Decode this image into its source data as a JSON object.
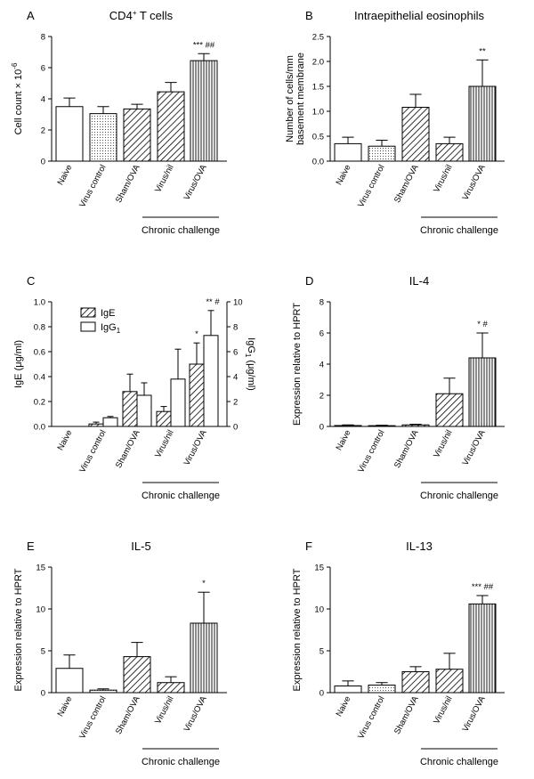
{
  "chart_data": [
    {
      "id": "A",
      "letter": "A",
      "type": "bar",
      "title": "CD4",
      "title_sup": "+",
      "title_rest": " T cells",
      "ylabel": "Cell count × 10",
      "ylabel_sup": "-6",
      "categories": [
        "Naive",
        "Virus control",
        "Sham/OVA",
        "Virus/nil",
        "Virus/OVA"
      ],
      "ylim": [
        0,
        8
      ],
      "yticks": [
        0,
        2,
        4,
        6,
        8
      ],
      "series": [
        {
          "name": "Cell count",
          "values": [
            3.5,
            3.05,
            3.35,
            4.45,
            6.45
          ],
          "errors": [
            0.55,
            0.45,
            0.3,
            0.6,
            0.45
          ],
          "patterns": [
            "white",
            "dots",
            "diag",
            "diag",
            "vert"
          ]
        }
      ],
      "annotations": [
        {
          "category": "Virus/OVA",
          "text": "*** ##"
        }
      ],
      "group_label": "Chronic challenge",
      "group_span": [
        "Virus/nil",
        "Virus/OVA"
      ]
    },
    {
      "id": "B",
      "letter": "B",
      "type": "bar",
      "title": "Intraepithelial eosinophils",
      "ylabel_lines": [
        "Number of cells/mm",
        "basement membrane"
      ],
      "categories": [
        "Naive",
        "Virus control",
        "Sham/OVA",
        "Virus/nil",
        "Virus/OVA"
      ],
      "ylim": [
        0,
        2.5
      ],
      "yticks": [
        "0.0",
        "0.5",
        "1.0",
        "1.5",
        "2.0",
        "2.5"
      ],
      "series": [
        {
          "name": "Eosinophils",
          "values": [
            0.35,
            0.3,
            1.08,
            0.35,
            1.5
          ],
          "errors": [
            0.13,
            0.12,
            0.26,
            0.13,
            0.53
          ],
          "patterns": [
            "white",
            "dots",
            "diag",
            "diag",
            "vert"
          ]
        }
      ],
      "annotations": [
        {
          "category": "Virus/OVA",
          "text": "**"
        }
      ],
      "group_label": "Chronic challenge",
      "group_span": [
        "Virus/nil",
        "Virus/OVA"
      ]
    },
    {
      "id": "C",
      "letter": "C",
      "type": "bar",
      "title": "",
      "ylabel": "IgE (μg/ml)",
      "ylabel_right": "IgG",
      "ylabel_right_sub": "1",
      "ylabel_right_rest": " (μg/ml)",
      "categories": [
        "Naive",
        "Virus control",
        "Sham/OVA",
        "Virus/nil",
        "Virus/OVA"
      ],
      "ylim": [
        0,
        1.0
      ],
      "yticks": [
        "0.0",
        "0.2",
        "0.4",
        "0.6",
        "0.8",
        "1.0"
      ],
      "ylim_right": [
        0,
        10
      ],
      "yticks_right": [
        "0",
        "2",
        "4",
        "6",
        "8",
        "10"
      ],
      "series": [
        {
          "name": "IgE",
          "axis": "left",
          "values": [
            0.0,
            0.02,
            0.28,
            0.12,
            0.5
          ],
          "errors": [
            0.0,
            0.015,
            0.14,
            0.04,
            0.17
          ]
        },
        {
          "name": "IgG",
          "name_sub": "1",
          "axis": "right",
          "values": [
            0.0,
            0.7,
            2.5,
            3.8,
            7.3
          ],
          "errors": [
            0.0,
            0.1,
            1.0,
            2.4,
            2.0
          ]
        }
      ],
      "legend": [
        {
          "label": "IgE",
          "pattern": "diag"
        },
        {
          "label": "IgG",
          "sub": "1",
          "pattern": "white"
        }
      ],
      "annotations": [
        {
          "category": "Virus/OVA",
          "series": "IgE",
          "text": "*"
        },
        {
          "category": "Virus/OVA",
          "series": "IgG",
          "text": "** #"
        }
      ],
      "group_label": "Chronic challenge",
      "group_span": [
        "Virus/nil",
        "Virus/OVA"
      ]
    },
    {
      "id": "D",
      "letter": "D",
      "type": "bar",
      "title": "IL-4",
      "ylabel": "Expression relative to HPRT",
      "categories": [
        "Naive",
        "Virus control",
        "Sham/OVA",
        "Virus/nil",
        "Virus/OVA"
      ],
      "ylim": [
        0,
        8
      ],
      "yticks": [
        0,
        2,
        4,
        6,
        8
      ],
      "series": [
        {
          "name": "IL-4",
          "values": [
            0.06,
            0.05,
            0.1,
            2.1,
            4.4
          ],
          "errors": [
            0.04,
            0.03,
            0.04,
            1.0,
            1.6
          ],
          "patterns": [
            "white",
            "dots",
            "diag",
            "diag",
            "vert"
          ]
        }
      ],
      "annotations": [
        {
          "category": "Virus/OVA",
          "text": "* #"
        }
      ],
      "group_label": "Chronic challenge",
      "group_span": [
        "Virus/nil",
        "Virus/OVA"
      ]
    },
    {
      "id": "E",
      "letter": "E",
      "type": "bar",
      "title": "IL-5",
      "ylabel": "Expression relative to HPRT",
      "categories": [
        "Naive",
        "Virus control",
        "Sham/OVA",
        "Virus/nil",
        "Virus/OVA"
      ],
      "ylim": [
        0,
        15
      ],
      "yticks": [
        0,
        5,
        10,
        15
      ],
      "series": [
        {
          "name": "IL-5",
          "values": [
            2.9,
            0.3,
            4.3,
            1.2,
            8.3
          ],
          "errors": [
            1.6,
            0.15,
            1.7,
            0.7,
            3.7
          ],
          "patterns": [
            "white",
            "dots",
            "diag",
            "diag",
            "vert"
          ]
        }
      ],
      "annotations": [
        {
          "category": "Virus/OVA",
          "text": "*"
        }
      ],
      "group_label": "Chronic challenge",
      "group_span": [
        "Virus/nil",
        "Virus/OVA"
      ]
    },
    {
      "id": "F",
      "letter": "F",
      "type": "bar",
      "title": "IL-13",
      "ylabel": "Expression relative to HPRT",
      "categories": [
        "Naive",
        "Virus control",
        "Sham/OVA",
        "Virus/nil",
        "Virus/OVA"
      ],
      "ylim": [
        0,
        15
      ],
      "yticks": [
        0,
        5,
        10,
        15
      ],
      "series": [
        {
          "name": "IL-13",
          "values": [
            0.8,
            0.9,
            2.5,
            2.8,
            10.6
          ],
          "errors": [
            0.6,
            0.3,
            0.6,
            1.9,
            1.0
          ],
          "patterns": [
            "white",
            "dots",
            "diag",
            "diag",
            "vert"
          ]
        }
      ],
      "annotations": [
        {
          "category": "Virus/OVA",
          "text": "*** ##"
        }
      ],
      "group_label": "Chronic challenge",
      "group_span": [
        "Virus/nil",
        "Virus/OVA"
      ]
    }
  ]
}
